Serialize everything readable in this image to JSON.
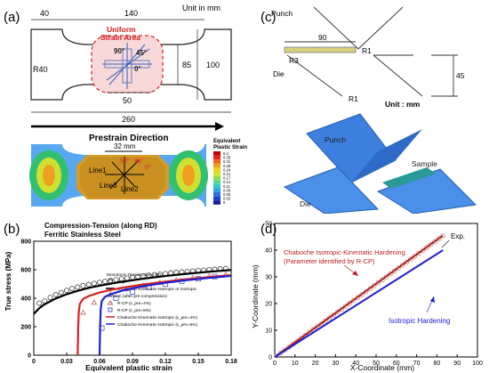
{
  "panel_a": {
    "label": "(a)",
    "dims": {
      "top_left": "40",
      "top": "140",
      "unit": "Unit in mm",
      "radius": "R40",
      "inner": "85",
      "outer": "100",
      "mid_bottom": "50",
      "overall": "260"
    },
    "uniform_label_1": "Uniform",
    "uniform_label_2": "Strain Area",
    "angles": {
      "a90": "90°",
      "a45": "45°",
      "a0": "0°"
    },
    "prestrain": "Prestrain Direction",
    "contour_dim": "32 mm",
    "lines": {
      "l1": "Line1",
      "l2": "Line2",
      "l3": "Line3"
    },
    "legend_title_1": "Equivalent",
    "legend_title_2": "Plastic Strain",
    "legend_values": [
      "0.4",
      "0.35",
      "0.31",
      "0.28",
      "0.24",
      "0.21",
      "0.17",
      "0.14",
      "0.11",
      "0.08",
      "0.05",
      "0.02",
      "0"
    ],
    "legend_colors": [
      "#c00000",
      "#e8201a",
      "#f0601a",
      "#f0a01a",
      "#f0d020",
      "#d0e830",
      "#90e050",
      "#50d890",
      "#30c8c8",
      "#30a0e0",
      "#3070e0",
      "#2040d0",
      "#1818a0"
    ]
  },
  "panel_c": {
    "label": "(c)",
    "punch": "Punch",
    "die": "Die",
    "r1a": "R1",
    "r1b": "R1",
    "r3": "R3",
    "w90": "90",
    "h45": "45",
    "unit": "Unit : mm",
    "punch3d": "Punch",
    "sample3d": "Sample",
    "die3d": "Die"
  },
  "panel_b": {
    "label": "(b)",
    "title_1": "Compression-Tension (along RD)",
    "title_2": "Ferritic Stainless Steel",
    "legend": {
      "mono_head": "Monotonic Tension along RD",
      "exp": "Exp.",
      "chaboche_iso": "Chaboche Kinematic-Isotropic or Isotropic",
      "tension_head": "Tension (after pre-compression)",
      "rcp4": "R-CP (ε_pre=4%)",
      "rcp6": "R-CP (ε_pre=6%)",
      "cki4": "Chaboche Kinematic-Isotropic (ε_pre=4%)",
      "cki6": "Chaboche Kinematic-Isotropic (ε_pre=6%)"
    },
    "chart_data": {
      "type": "line",
      "xlabel": "Equivalent plastic strain",
      "ylabel": "True stress (MPa)",
      "xlim": [
        0,
        0.18
      ],
      "ylim": [
        0,
        800
      ],
      "xticks": [
        "0",
        "0.03",
        "0.06",
        "0.09",
        "0.12",
        "0.15",
        "0.18"
      ],
      "yticks": [
        "0",
        "200",
        "400",
        "600",
        "800"
      ],
      "series": [
        {
          "name": "Exp.",
          "kind": "circles",
          "color": "#444444",
          "x": [
            0.005,
            0.01,
            0.015,
            0.02,
            0.025,
            0.03,
            0.035,
            0.04,
            0.045,
            0.05,
            0.055,
            0.06,
            0.065,
            0.07,
            0.075,
            0.08,
            0.085,
            0.09,
            0.095,
            0.1,
            0.105,
            0.11,
            0.115,
            0.12,
            0.125,
            0.13,
            0.135,
            0.14,
            0.145,
            0.15,
            0.155,
            0.16,
            0.165,
            0.17,
            0.175
          ],
          "y": [
            365,
            380,
            405,
            425,
            440,
            455,
            468,
            478,
            488,
            496,
            504,
            511,
            518,
            524,
            530,
            536,
            541,
            546,
            551,
            556,
            561,
            565,
            569,
            573,
            577,
            581,
            584,
            587,
            591,
            594,
            597,
            600,
            603,
            606,
            609
          ]
        },
        {
          "name": "Chaboche Kinematic-Isotropic or Isotropic",
          "kind": "line",
          "color": "#000000",
          "width": 2.2,
          "x": [
            0,
            0.005,
            0.01,
            0.02,
            0.03,
            0.04,
            0.05,
            0.06,
            0.08,
            0.1,
            0.12,
            0.14,
            0.16,
            0.18
          ],
          "y": [
            290,
            330,
            358,
            398,
            428,
            452,
            472,
            488,
            515,
            537,
            556,
            572,
            586,
            598
          ]
        },
        {
          "name": "R-CP (ε_pre=4%)",
          "kind": "triangles",
          "color": "#c06060",
          "x": [
            0.045,
            0.055,
            0.07,
            0.085,
            0.1,
            0.115,
            0.13,
            0.145,
            0.16,
            0.175
          ],
          "y": [
            300,
            370,
            430,
            465,
            490,
            510,
            528,
            543,
            556,
            568
          ]
        },
        {
          "name": "R-CP (ε_pre=6%)",
          "kind": "squares",
          "color": "#5060c0",
          "x": [
            0.062,
            0.075,
            0.09,
            0.105,
            0.12,
            0.135,
            0.15,
            0.165
          ],
          "y": [
            190,
            400,
            445,
            475,
            500,
            520,
            537,
            552
          ]
        },
        {
          "name": "Chaboche Kinematic-Isotropic (ε_pre=4%)",
          "kind": "line",
          "color": "#d82020",
          "width": 2.2,
          "x": [
            0.04,
            0.0405,
            0.041,
            0.042,
            0.045,
            0.05,
            0.06,
            0.07,
            0.08,
            0.1,
            0.12,
            0.14,
            0.16,
            0.18
          ],
          "y": [
            0,
            200,
            300,
            360,
            395,
            415,
            440,
            458,
            473,
            497,
            517,
            534,
            549,
            562
          ]
        },
        {
          "name": "Chaboche Kinematic-Isotropic (ε_pre=6%)",
          "kind": "line",
          "color": "#2020d0",
          "width": 2.2,
          "x": [
            0.06,
            0.0605,
            0.061,
            0.062,
            0.065,
            0.07,
            0.08,
            0.09,
            0.1,
            0.12,
            0.14,
            0.16,
            0.18
          ],
          "y": [
            0,
            200,
            320,
            380,
            410,
            428,
            452,
            470,
            485,
            508,
            527,
            543,
            557
          ]
        }
      ]
    }
  },
  "panel_d": {
    "label": "(d)",
    "exp_label": "Exp.",
    "chaboche_1": "Chaboche Isotropic-Kinematic Hardening",
    "chaboche_2": "(Parameter identified by R-CP)",
    "iso": "Isotropic Hardening",
    "chart_data": {
      "type": "line",
      "xlabel": "X-Coordinate (mm)",
      "ylabel": "Y-Coordinate (mm)",
      "xlim": [
        0,
        100
      ],
      "ylim": [
        0,
        50
      ],
      "xticks": [
        "0",
        "10",
        "20",
        "30",
        "40",
        "50",
        "60",
        "70",
        "80",
        "90",
        "100"
      ],
      "yticks": [
        "0",
        "10",
        "20",
        "30",
        "40",
        "50"
      ],
      "series": [
        {
          "name": "Exp.",
          "kind": "circles",
          "color": "#c08080",
          "x": [
            1,
            3,
            5,
            7,
            9,
            11,
            13,
            15,
            17,
            19,
            21,
            23,
            25,
            27,
            29,
            31,
            33,
            35,
            37,
            39,
            41,
            43,
            45,
            47,
            49,
            51,
            53,
            55,
            57,
            59,
            61,
            63,
            65,
            67,
            69,
            71,
            73,
            75,
            77,
            79,
            81,
            83
          ],
          "y": [
            0.5,
            1.5,
            2.6,
            3.7,
            4.8,
            5.9,
            7.0,
            8.1,
            9.2,
            10.3,
            11.4,
            12.4,
            13.5,
            14.6,
            15.7,
            16.8,
            17.9,
            19.0,
            20.1,
            21.2,
            22.3,
            23.4,
            24.5,
            25.6,
            26.7,
            27.8,
            28.9,
            30.0,
            31.1,
            32.2,
            33.3,
            34.4,
            35.5,
            36.6,
            37.7,
            38.8,
            39.9,
            41.0,
            42.1,
            43.2,
            44.3,
            45.4
          ]
        },
        {
          "name": "Chaboche Isotropic-Kinematic Hardening",
          "kind": "line",
          "color": "#b02020",
          "width": 2,
          "x": [
            0,
            83
          ],
          "y": [
            0,
            45.5
          ]
        },
        {
          "name": "Isotropic Hardening",
          "kind": "line",
          "color": "#2020d0",
          "width": 2,
          "x": [
            0,
            83
          ],
          "y": [
            0,
            40
          ]
        }
      ]
    }
  }
}
